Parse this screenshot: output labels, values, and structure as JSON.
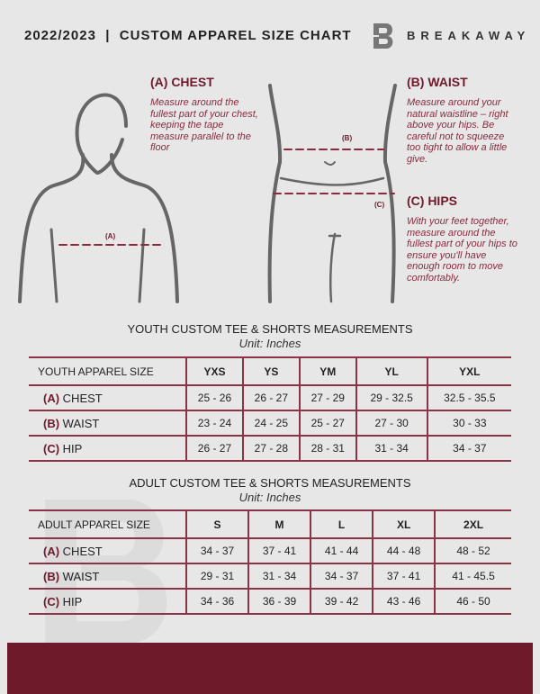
{
  "header": {
    "title": "2022/2023  |  CUSTOM APPAREL SIZE CHART",
    "brand": "BREAKAWAY",
    "logo_letter": "B"
  },
  "chest": {
    "heading": "(A) CHEST",
    "text": "Measure around the fullest part of your chest, keeping the tape measure parallel to the floor",
    "marker": "(A)"
  },
  "waist": {
    "heading": "(B) WAIST",
    "text": "Measure around your natural waistline – right above your hips. Be careful not to squeeze too tight to allow a little give.",
    "marker": "(B)"
  },
  "hips": {
    "heading": "(C) HIPS",
    "text": "With your feet together, measure around the fullest part of your hips to ensure you'll have enough room to move comfortably.",
    "marker": "(C)"
  },
  "youth": {
    "title": "YOUTH CUSTOM TEE & SHORTS MEASUREMENTS",
    "unit": "Unit: Inches",
    "header": [
      "YOUTH APPAREL SIZE",
      "YXS",
      "YS",
      "YM",
      "YL",
      "YXL"
    ],
    "rows": [
      {
        "letter": "(A)",
        "name": "CHEST",
        "values": [
          "25 - 26",
          "26 - 27",
          "27 - 29",
          "29 - 32.5",
          "32.5 - 35.5"
        ]
      },
      {
        "letter": "(B)",
        "name": "WAIST",
        "values": [
          "23 - 24",
          "24 - 25",
          "25 - 27",
          "27 - 30",
          "30 - 33"
        ]
      },
      {
        "letter": "(C)",
        "name": "HIP",
        "values": [
          "26 - 27",
          "27 - 28",
          "28 - 31",
          "31 - 34",
          "34 - 37"
        ]
      }
    ]
  },
  "adult": {
    "title": "ADULT CUSTOM TEE & SHORTS MEASUREMENTS",
    "unit": "Unit: Inches",
    "header": [
      "ADULT APPAREL SIZE",
      "S",
      "M",
      "L",
      "XL",
      "2XL"
    ],
    "rows": [
      {
        "letter": "(A)",
        "name": "CHEST",
        "values": [
          "34 - 37",
          "37 - 41",
          "41 - 44",
          "44 - 48",
          "48 - 52"
        ]
      },
      {
        "letter": "(B)",
        "name": "WAIST",
        "values": [
          "29 - 31",
          "31 - 34",
          "34 - 37",
          "37 - 41",
          "41 - 45.5"
        ]
      },
      {
        "letter": "(C)",
        "name": "HIP",
        "values": [
          "34 - 36",
          "36 - 39",
          "39 - 42",
          "43 - 46",
          "46 - 50"
        ]
      }
    ]
  },
  "colors": {
    "accent": "#6e1a2b",
    "background": "#e7e7e8"
  }
}
